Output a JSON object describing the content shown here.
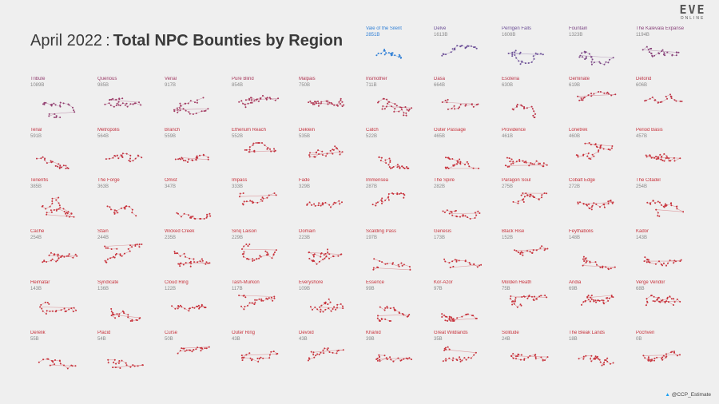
{
  "header": {
    "title_date": "April 2022",
    "title_sep": ":",
    "title_main": "Total NPC Bounties by Region"
  },
  "logo": {
    "main": "EVE",
    "sub": "ONLINE"
  },
  "credit": {
    "icon": "twitter-bird-icon",
    "handle": "@CCP_Estimate"
  },
  "colors": {
    "highlight": "#2f7fd6",
    "high": "#6b4e96",
    "mid": "#9a3a68",
    "low": "#c8323b",
    "label_value": "#8a8a8a"
  },
  "chart_data": {
    "type": "small-multiples",
    "title": "April 2022 : Total NPC Bounties by Region",
    "unit": "B",
    "regions": [
      {
        "name": "Vale of the Silent",
        "label": "2851B",
        "value": 2851
      },
      {
        "name": "Delve",
        "label": "1613B",
        "value": 1613
      },
      {
        "name": "Perrigen Falls",
        "label": "1608B",
        "value": 1608
      },
      {
        "name": "Fountain",
        "label": "1323B",
        "value": 1323
      },
      {
        "name": "The Kalevala Expanse",
        "label": "1194B",
        "value": 1194
      },
      {
        "name": "Tribute",
        "label": "1089B",
        "value": 1089
      },
      {
        "name": "Querious",
        "label": "985B",
        "value": 985
      },
      {
        "name": "Venal",
        "label": "917B",
        "value": 917
      },
      {
        "name": "Pure Blind",
        "label": "854B",
        "value": 854
      },
      {
        "name": "Malpais",
        "label": "750B",
        "value": 750
      },
      {
        "name": "Insmother",
        "label": "711B",
        "value": 711
      },
      {
        "name": "Dasa",
        "label": "664B",
        "value": 664
      },
      {
        "name": "Esoteria",
        "label": "630B",
        "value": 630
      },
      {
        "name": "Geminate",
        "label": "619B",
        "value": 619
      },
      {
        "name": "Detorid",
        "label": "606B",
        "value": 606
      },
      {
        "name": "Tenal",
        "label": "591B",
        "value": 591
      },
      {
        "name": "Metropolis",
        "label": "564B",
        "value": 564
      },
      {
        "name": "Branch",
        "label": "559B",
        "value": 559
      },
      {
        "name": "Etherium Reach",
        "label": "552B",
        "value": 552
      },
      {
        "name": "Deklein",
        "label": "535B",
        "value": 535
      },
      {
        "name": "Catch",
        "label": "522B",
        "value": 522
      },
      {
        "name": "Outer Passage",
        "label": "465B",
        "value": 465
      },
      {
        "name": "Providence",
        "label": "461B",
        "value": 461
      },
      {
        "name": "Lonetrek",
        "label": "460B",
        "value": 460
      },
      {
        "name": "Period Basis",
        "label": "457B",
        "value": 457
      },
      {
        "name": "Tenerifis",
        "label": "385B",
        "value": 385
      },
      {
        "name": "The Forge",
        "label": "363B",
        "value": 363
      },
      {
        "name": "Omist",
        "label": "347B",
        "value": 347
      },
      {
        "name": "Impass",
        "label": "333B",
        "value": 333
      },
      {
        "name": "Fade",
        "label": "329B",
        "value": 329
      },
      {
        "name": "Immensea",
        "label": "287B",
        "value": 287
      },
      {
        "name": "The Spire",
        "label": "282B",
        "value": 282
      },
      {
        "name": "Paragon Soul",
        "label": "275B",
        "value": 275
      },
      {
        "name": "Cobalt Edge",
        "label": "272B",
        "value": 272
      },
      {
        "name": "The Citadel",
        "label": "254B",
        "value": 254
      },
      {
        "name": "Cache",
        "label": "254B",
        "value": 254
      },
      {
        "name": "Stain",
        "label": "244B",
        "value": 244
      },
      {
        "name": "Wicked Creek",
        "label": "235B",
        "value": 235
      },
      {
        "name": "Sinq Laison",
        "label": "229B",
        "value": 229
      },
      {
        "name": "Domain",
        "label": "223B",
        "value": 223
      },
      {
        "name": "Scalding Pass",
        "label": "197B",
        "value": 197
      },
      {
        "name": "Genesis",
        "label": "173B",
        "value": 173
      },
      {
        "name": "Black Rise",
        "label": "152B",
        "value": 152
      },
      {
        "name": "Feythabolis",
        "label": "148B",
        "value": 148
      },
      {
        "name": "Kador",
        "label": "143B",
        "value": 143
      },
      {
        "name": "Heimatar",
        "label": "143B",
        "value": 143
      },
      {
        "name": "Syndicate",
        "label": "136B",
        "value": 136
      },
      {
        "name": "Cloud Ring",
        "label": "122B",
        "value": 122
      },
      {
        "name": "Tash-Murkon",
        "label": "117B",
        "value": 117
      },
      {
        "name": "Everyshore",
        "label": "109B",
        "value": 109
      },
      {
        "name": "Essence",
        "label": "99B",
        "value": 99
      },
      {
        "name": "Kor-Azor",
        "label": "97B",
        "value": 97
      },
      {
        "name": "Molden Heath",
        "label": "75B",
        "value": 75
      },
      {
        "name": "Aridia",
        "label": "69B",
        "value": 69
      },
      {
        "name": "Verge Vendor",
        "label": "68B",
        "value": 68
      },
      {
        "name": "Derelik",
        "label": "55B",
        "value": 55
      },
      {
        "name": "Placid",
        "label": "54B",
        "value": 54
      },
      {
        "name": "Curse",
        "label": "50B",
        "value": 50
      },
      {
        "name": "Outer Ring",
        "label": "43B",
        "value": 43
      },
      {
        "name": "Devoid",
        "label": "43B",
        "value": 43
      },
      {
        "name": "Khanid",
        "label": "39B",
        "value": 39
      },
      {
        "name": "Great Wildlands",
        "label": "35B",
        "value": 35
      },
      {
        "name": "Solitude",
        "label": "24B",
        "value": 24
      },
      {
        "name": "The Bleak Lands",
        "label": "18B",
        "value": 18
      },
      {
        "name": "Pochven",
        "label": "0B",
        "value": 0
      }
    ]
  }
}
